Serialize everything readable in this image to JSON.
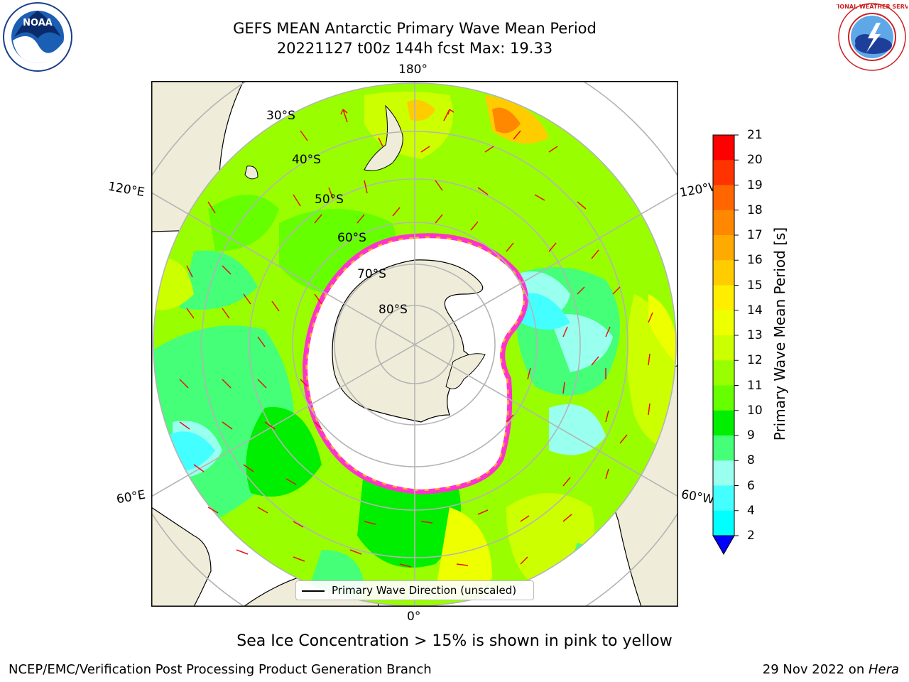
{
  "title": {
    "line1": "GEFS MEAN Antarctic Primary Wave Mean Period",
    "line2": "20221127 t00z 144h fcst   Max: 19.33"
  },
  "map": {
    "projection": "south-polar-stereographic",
    "longitude_labels": [
      "180°",
      "120°E",
      "120°W",
      "60°E",
      "60°W",
      "0°"
    ],
    "latitude_labels": [
      "30°S",
      "40°S",
      "50°S",
      "60°S",
      "70°S",
      "80°S"
    ],
    "land_color": "#efedd9",
    "sea_ice_color": "#ffffff",
    "sea_ice_edge_colors": [
      "#ff33cc",
      "#ffaa33",
      "#ffee66"
    ],
    "arrow_color": "#ee1111",
    "grid_color": "#b4b4b4"
  },
  "legend": {
    "entry": "Primary Wave Direction (unscaled)"
  },
  "colorbar": {
    "label": "Primary Wave Mean Period [s]",
    "ticks": [
      "21",
      "20",
      "19",
      "18",
      "17",
      "16",
      "15",
      "14",
      "13",
      "12",
      "11",
      "10",
      "9",
      "8",
      "6",
      "4",
      "2"
    ],
    "colors": [
      "#ff0000",
      "#ff3300",
      "#ff6600",
      "#ff8800",
      "#ffaa00",
      "#ffcc00",
      "#ffee00",
      "#eeff00",
      "#ccff00",
      "#99ff00",
      "#66ff00",
      "#00ee00",
      "#44ff77",
      "#99ffee",
      "#44ffff",
      "#00ffff",
      "#0099ff",
      "#0055ff"
    ],
    "extend_color": "#0000ff"
  },
  "subtitle": "Sea Ice Concentration > 15% is shown in pink to yellow",
  "footer": {
    "left": "NCEP/EMC/Verification Post Processing Product Generation Branch",
    "right_prefix": "29 Nov 2022 on ",
    "right_machine": "Hera"
  },
  "logos": {
    "left": {
      "icon": "noaa-logo",
      "text": "NOAA"
    },
    "right": {
      "icon": "nws-logo",
      "text": "NATIONAL WEATHER SERVICE"
    }
  }
}
